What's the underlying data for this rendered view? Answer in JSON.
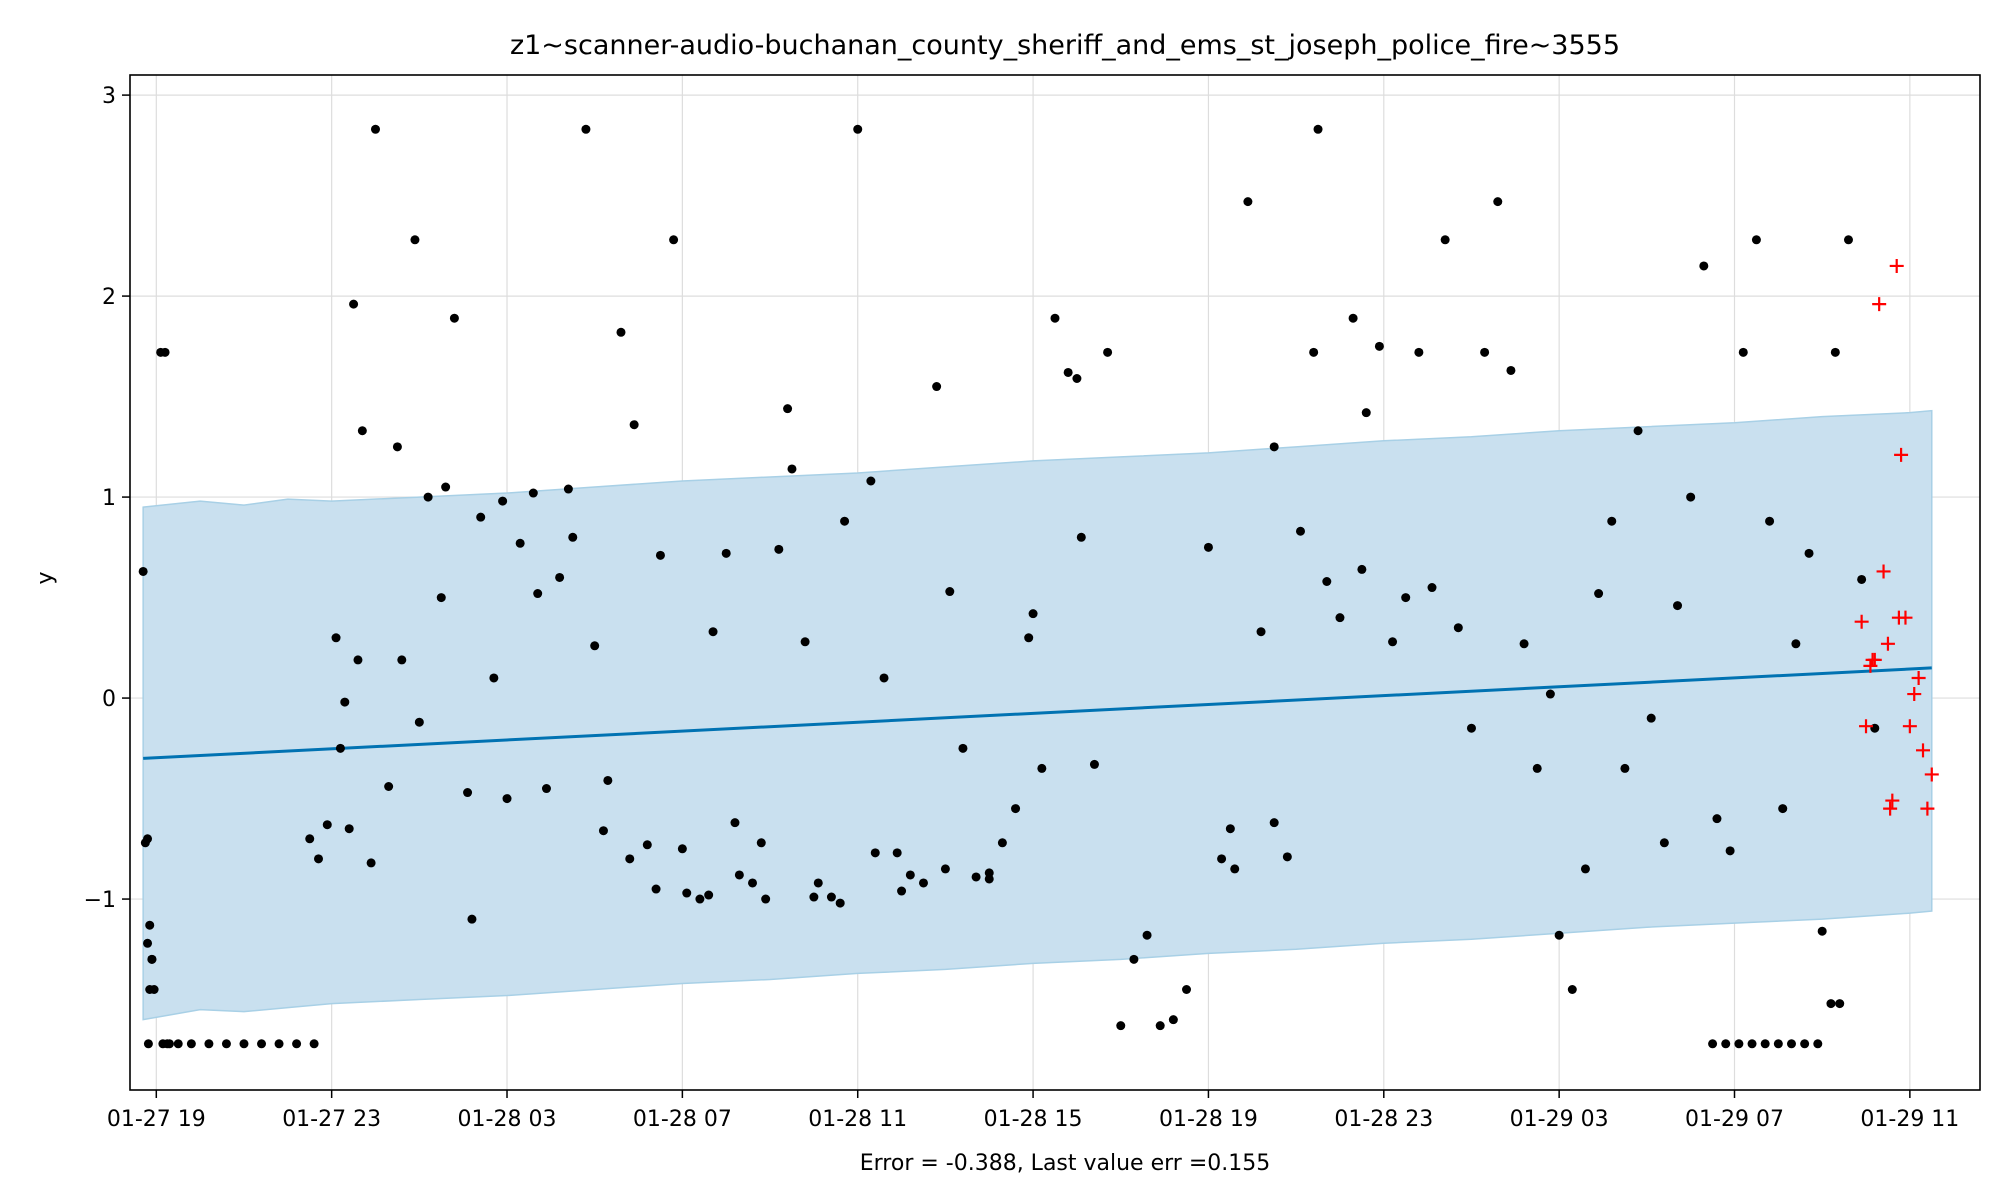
{
  "chart_data": {
    "type": "scatter",
    "title": "z1~scanner-audio-buchanan_county_sheriff_and_ems_st_joseph_police_fire~3555",
    "xlabel": "Error = -0.388, Last value err =0.155",
    "ylabel": "y",
    "x_unit": "hours",
    "xlim": [
      -0.6,
      41.6
    ],
    "ylim": [
      -1.95,
      3.1
    ],
    "x_ticks": [
      {
        "value": 0,
        "label": "01-27 19"
      },
      {
        "value": 4,
        "label": "01-27 23"
      },
      {
        "value": 8,
        "label": "01-28 03"
      },
      {
        "value": 12,
        "label": "01-28 07"
      },
      {
        "value": 16,
        "label": "01-28 11"
      },
      {
        "value": 20,
        "label": "01-28 15"
      },
      {
        "value": 24,
        "label": "01-28 19"
      },
      {
        "value": 28,
        "label": "01-28 23"
      },
      {
        "value": 32,
        "label": "01-29 03"
      },
      {
        "value": 36,
        "label": "01-29 07"
      },
      {
        "value": 40,
        "label": "01-29 11"
      }
    ],
    "y_ticks": [
      {
        "value": 3,
        "label": "3"
      },
      {
        "value": 2,
        "label": "2"
      },
      {
        "value": 1,
        "label": "1"
      },
      {
        "value": 0,
        "label": "0"
      },
      {
        "value": -1,
        "label": "−1"
      }
    ],
    "grid": true,
    "colors": {
      "forecast_line": "#0072b2",
      "interval_fill": "#c9e0ef",
      "interval_edge": "#a8d0e6",
      "observed": "#000000",
      "test": "#ff0000"
    },
    "series": [
      {
        "role": "forecast",
        "style": "line",
        "x": [
          -0.3,
          40.5
        ],
        "y": [
          -0.3,
          0.15
        ]
      },
      {
        "role": "interval",
        "style": "band",
        "x": [
          -0.3,
          1,
          2,
          3,
          4,
          6,
          8,
          10,
          12,
          14,
          16,
          18,
          20,
          22,
          24,
          26,
          28,
          30,
          32,
          34,
          36,
          38,
          40,
          40.5
        ],
        "upper": [
          0.95,
          0.98,
          0.96,
          0.99,
          0.98,
          1.0,
          1.02,
          1.05,
          1.08,
          1.1,
          1.12,
          1.15,
          1.18,
          1.2,
          1.22,
          1.25,
          1.28,
          1.3,
          1.33,
          1.35,
          1.37,
          1.4,
          1.42,
          1.43
        ],
        "lower": [
          -1.6,
          -1.55,
          -1.56,
          -1.54,
          -1.52,
          -1.5,
          -1.48,
          -1.45,
          -1.42,
          -1.4,
          -1.37,
          -1.35,
          -1.32,
          -1.3,
          -1.27,
          -1.25,
          -1.22,
          -1.2,
          -1.17,
          -1.14,
          -1.12,
          -1.1,
          -1.07,
          -1.06
        ]
      },
      {
        "role": "observed",
        "style": "points",
        "x": [
          -0.3,
          -0.2,
          -0.15,
          -0.1,
          -0.05,
          0.1,
          0.2,
          0.3,
          0.5,
          0.8,
          1.2,
          1.6,
          2.0,
          2.4,
          2.8,
          3.2,
          3.6,
          -0.2,
          -0.25,
          -0.15,
          -0.1,
          -0.18,
          0.15,
          0.25,
          3.5,
          3.7,
          3.9,
          4.1,
          4.3,
          4.5,
          4.7,
          5.0,
          5.3,
          5.6,
          5.9,
          6.2,
          6.5,
          6.8,
          7.1,
          7.4,
          7.7,
          8.0,
          8.3,
          8.6,
          8.9,
          9.2,
          9.5,
          9.8,
          4.4,
          4.2,
          4.6,
          4.9,
          5.5,
          6.0,
          6.6,
          7.2,
          7.9,
          8.7,
          9.4,
          10.0,
          10.3,
          10.6,
          10.9,
          11.2,
          11.5,
          11.8,
          12.1,
          12.4,
          12.7,
          13.0,
          13.3,
          13.6,
          13.9,
          14.2,
          14.5,
          14.8,
          15.1,
          15.4,
          15.7,
          10.2,
          10.8,
          11.4,
          12.0,
          12.6,
          13.2,
          13.8,
          14.4,
          15.0,
          15.6,
          16.0,
          16.3,
          16.6,
          16.9,
          17.2,
          17.5,
          17.8,
          18.1,
          18.4,
          18.7,
          19.0,
          19.3,
          19.6,
          19.9,
          20.2,
          20.5,
          20.8,
          21.1,
          21.4,
          21.7,
          22.0,
          22.3,
          22.6,
          22.9,
          23.2,
          23.5,
          16.4,
          17.0,
          18.0,
          19.0,
          20.0,
          21.0,
          24.0,
          24.3,
          24.6,
          24.9,
          25.2,
          25.5,
          25.8,
          26.1,
          26.4,
          26.7,
          27.0,
          27.3,
          27.6,
          27.9,
          28.2,
          28.5,
          28.8,
          29.1,
          29.4,
          29.7,
          30.0,
          30.3,
          30.6,
          30.9,
          31.2,
          31.5,
          31.8,
          24.5,
          25.5,
          26.5,
          27.5,
          32.0,
          32.3,
          32.6,
          32.9,
          33.2,
          33.5,
          33.8,
          34.1,
          34.4,
          34.7,
          35.0,
          35.3,
          35.6,
          35.9,
          36.2,
          36.5,
          36.8,
          37.1,
          37.4,
          37.7,
          38.0,
          38.3,
          38.6,
          38.9,
          39.2,
          35.5,
          35.8,
          36.1,
          36.4,
          36.7,
          37.0,
          37.3,
          37.6,
          37.9,
          38.2,
          38.4
        ],
        "y": [
          0.63,
          -0.7,
          -1.13,
          -1.3,
          -1.45,
          1.72,
          1.72,
          -1.72,
          -1.72,
          -1.72,
          -1.72,
          -1.72,
          -1.72,
          -1.72,
          -1.72,
          -1.72,
          -1.72,
          -1.22,
          -0.72,
          -1.45,
          -1.3,
          -1.72,
          -1.72,
          -1.72,
          -0.7,
          -0.8,
          -0.63,
          0.3,
          -0.02,
          1.96,
          1.33,
          2.83,
          -0.44,
          0.19,
          2.28,
          1.0,
          0.5,
          1.89,
          -0.47,
          0.9,
          0.1,
          -0.5,
          0.77,
          1.02,
          -0.45,
          0.6,
          0.8,
          2.83,
          -0.65,
          -0.25,
          0.19,
          -0.82,
          1.25,
          -0.12,
          1.05,
          -1.1,
          0.98,
          0.52,
          1.04,
          0.26,
          -0.41,
          1.82,
          1.36,
          -0.73,
          0.71,
          2.28,
          -0.97,
          -1.0,
          0.33,
          0.72,
          -0.88,
          -0.92,
          -1.0,
          0.74,
          1.14,
          0.28,
          -0.92,
          -0.99,
          0.88,
          -0.66,
          -0.8,
          -0.95,
          -0.75,
          -0.98,
          -0.62,
          -0.72,
          1.44,
          -0.99,
          -1.02,
          2.83,
          1.08,
          0.1,
          -0.77,
          -0.88,
          -0.92,
          1.55,
          0.53,
          -0.25,
          -0.89,
          -0.87,
          -0.72,
          -0.55,
          0.3,
          -0.35,
          1.89,
          1.62,
          0.8,
          -0.33,
          1.72,
          -1.63,
          -1.3,
          -1.18,
          -1.63,
          -1.6,
          -1.45,
          -0.77,
          -0.96,
          -0.85,
          -0.9,
          0.42,
          1.59,
          0.75,
          -0.8,
          -0.85,
          2.47,
          0.33,
          1.25,
          -0.79,
          0.83,
          1.72,
          0.58,
          0.4,
          1.89,
          1.42,
          1.75,
          0.28,
          0.5,
          1.72,
          0.55,
          2.28,
          0.35,
          -0.15,
          1.72,
          2.47,
          1.63,
          0.27,
          -0.35,
          0.02,
          -0.65,
          -0.62,
          2.83,
          0.64,
          -1.18,
          -1.45,
          -0.85,
          0.52,
          0.88,
          -0.35,
          1.33,
          -0.1,
          -0.72,
          0.46,
          1.0,
          2.15,
          -0.6,
          -0.76,
          1.72,
          2.28,
          0.88,
          -0.55,
          0.27,
          0.72,
          -1.16,
          1.72,
          2.28,
          0.59,
          -0.15,
          -1.72,
          -1.72,
          -1.72,
          -1.72,
          -1.72,
          -1.72,
          -1.72,
          -1.72,
          -1.72,
          -1.52,
          -1.52
        ]
      },
      {
        "role": "test",
        "style": "plus",
        "x": [
          38.9,
          39.0,
          39.1,
          39.2,
          39.3,
          39.4,
          39.5,
          39.6,
          39.7,
          39.8,
          39.9,
          40.0,
          40.1,
          40.2,
          40.3,
          40.4,
          40.5,
          39.15,
          39.55,
          39.75
        ],
        "y": [
          0.38,
          -0.14,
          0.16,
          0.19,
          1.96,
          0.63,
          0.27,
          -0.51,
          2.15,
          1.21,
          0.4,
          -0.14,
          0.02,
          0.1,
          -0.26,
          -0.55,
          -0.38,
          0.19,
          -0.55,
          0.4
        ]
      }
    ]
  }
}
